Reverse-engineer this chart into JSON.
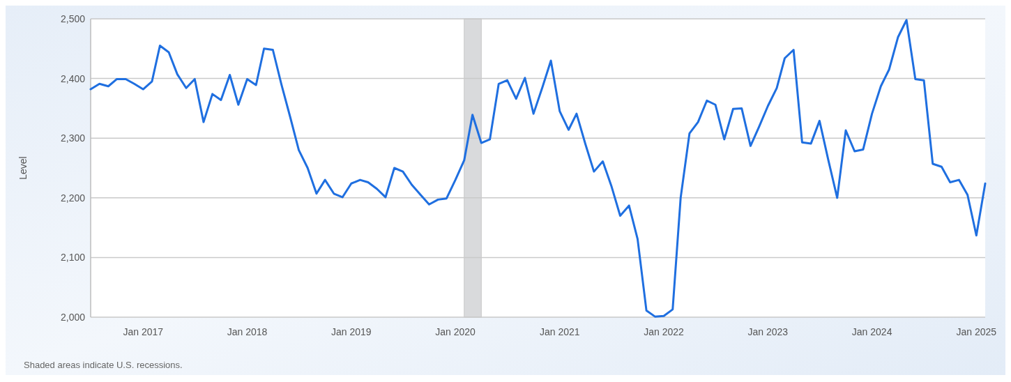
{
  "chart_data": {
    "type": "line",
    "ylabel": "Level",
    "x": [
      "2016-07",
      "2016-08",
      "2016-09",
      "2016-10",
      "2016-11",
      "2016-12",
      "2017-01",
      "2017-02",
      "2017-03",
      "2017-04",
      "2017-05",
      "2017-06",
      "2017-07",
      "2017-08",
      "2017-09",
      "2017-10",
      "2017-11",
      "2017-12",
      "2018-01",
      "2018-02",
      "2018-03",
      "2018-04",
      "2018-05",
      "2018-06",
      "2018-07",
      "2018-08",
      "2018-09",
      "2018-10",
      "2018-11",
      "2018-12",
      "2019-01",
      "2019-02",
      "2019-03",
      "2019-04",
      "2019-05",
      "2019-06",
      "2019-07",
      "2019-08",
      "2019-09",
      "2019-10",
      "2019-11",
      "2019-12",
      "2020-01",
      "2020-02",
      "2020-03",
      "2020-04",
      "2020-05",
      "2020-06",
      "2020-07",
      "2020-08",
      "2020-09",
      "2020-10",
      "2020-11",
      "2020-12",
      "2021-01",
      "2021-02",
      "2021-03",
      "2021-04",
      "2021-05",
      "2021-06",
      "2021-07",
      "2021-08",
      "2021-09",
      "2021-10",
      "2021-11",
      "2021-12",
      "2022-01",
      "2022-02",
      "2022-03",
      "2022-04",
      "2022-05",
      "2022-06",
      "2022-07",
      "2022-08",
      "2022-09",
      "2022-10",
      "2022-11",
      "2022-12",
      "2023-01",
      "2023-02",
      "2023-03",
      "2023-04",
      "2023-05",
      "2023-06",
      "2023-07",
      "2023-08",
      "2023-09",
      "2023-10",
      "2023-11",
      "2023-12",
      "2024-01",
      "2024-02",
      "2024-03",
      "2024-04",
      "2024-05",
      "2024-06",
      "2024-07",
      "2024-08",
      "2024-09",
      "2024-10",
      "2024-11",
      "2024-12",
      "2025-01",
      "2025-02"
    ],
    "series": [
      {
        "color": "#1f6fe0",
        "values": [
          2382,
          2391,
          2387,
          2399,
          2399,
          2391,
          2382,
          2395,
          2455,
          2444,
          2407,
          2384,
          2399,
          2327,
          2374,
          2364,
          2406,
          2356,
          2399,
          2389,
          2450,
          2448,
          2390,
          2335,
          2280,
          2250,
          2207,
          2230,
          2207,
          2201,
          2224,
          2230,
          2226,
          2215,
          2201,
          2250,
          2244,
          2222,
          2205,
          2189,
          2197,
          2199,
          2230,
          2263,
          2339,
          2292,
          2298,
          2391,
          2397,
          2366,
          2401,
          2341,
          2385,
          2430,
          2345,
          2314,
          2341,
          2290,
          2244,
          2261,
          2220,
          2170,
          2187,
          2131,
          2011,
          2001,
          2002,
          2013,
          2200,
          2308,
          2327,
          2363,
          2356,
          2298,
          2349,
          2350,
          2287,
          2319,
          2354,
          2384,
          2434,
          2448,
          2293,
          2291,
          2329,
          2263,
          2200,
          2313,
          2278,
          2281,
          2341,
          2387,
          2415,
          2469,
          2498,
          2399,
          2397,
          2257,
          2252,
          2226,
          2230,
          2205,
          2137,
          2224
        ]
      }
    ],
    "xlim": [
      "2016-07",
      "2025-02"
    ],
    "xticks": [
      {
        "value": "2017-01",
        "label": "Jan 2017"
      },
      {
        "value": "2018-01",
        "label": "Jan 2018"
      },
      {
        "value": "2019-01",
        "label": "Jan 2019"
      },
      {
        "value": "2020-01",
        "label": "Jan 2020"
      },
      {
        "value": "2021-01",
        "label": "Jan 2021"
      },
      {
        "value": "2022-01",
        "label": "Jan 2022"
      },
      {
        "value": "2023-01",
        "label": "Jan 2023"
      },
      {
        "value": "2024-01",
        "label": "Jan 2024"
      },
      {
        "value": "2025-01",
        "label": "Jan 2025"
      }
    ],
    "ylim": [
      2000,
      2500
    ],
    "yticks": [
      {
        "value": 2000,
        "label": "2,000"
      },
      {
        "value": 2100,
        "label": "2,100"
      },
      {
        "value": 2200,
        "label": "2,200"
      },
      {
        "value": 2300,
        "label": "2,300"
      },
      {
        "value": 2400,
        "label": "2,400"
      },
      {
        "value": 2500,
        "label": "2,500"
      }
    ],
    "grid": "y",
    "bands": [
      {
        "axis": "x",
        "from": "2020-02",
        "to": "2020-04",
        "color": "#d9dadc"
      }
    ],
    "annotations": [
      "Shaded areas indicate U.S. recessions."
    ]
  }
}
